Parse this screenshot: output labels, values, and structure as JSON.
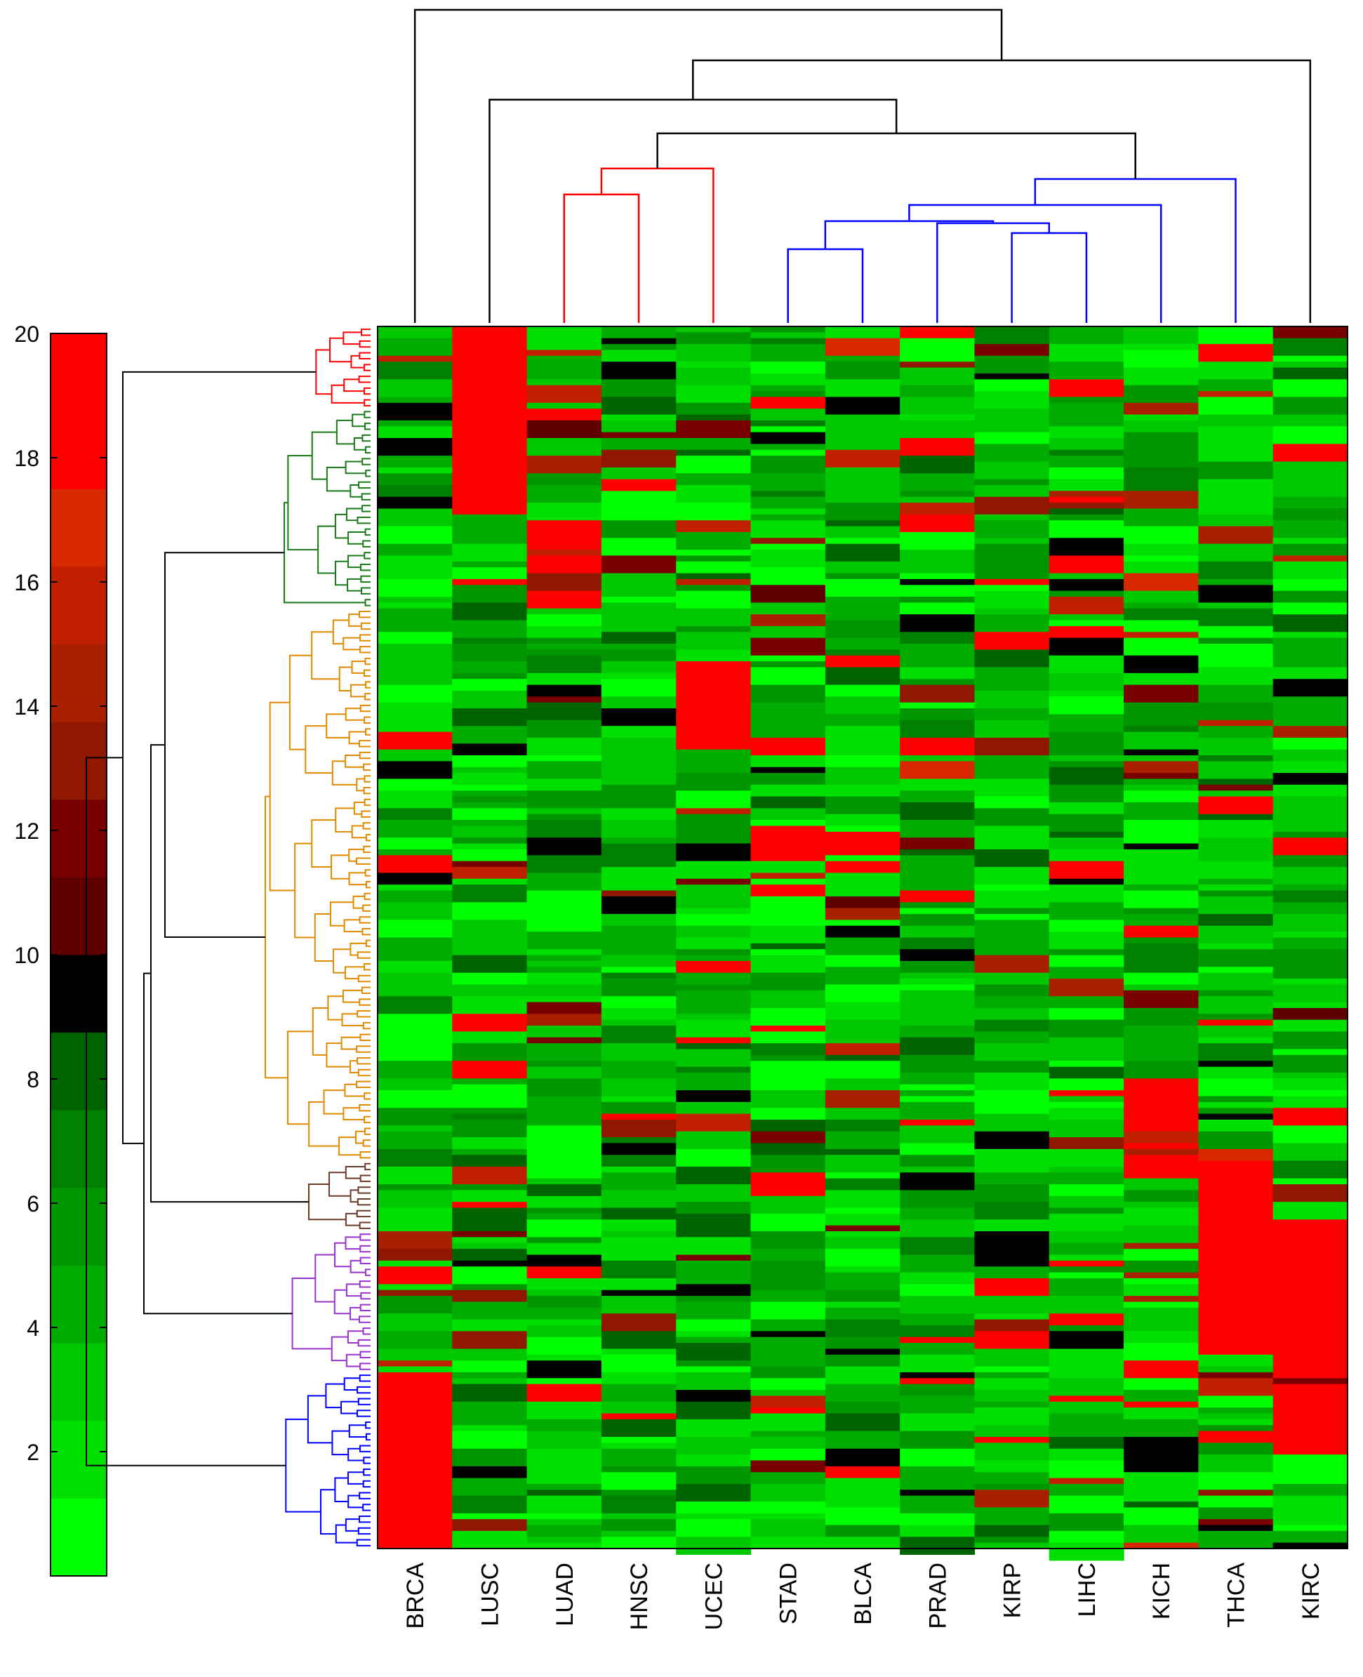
{
  "chart_data": {
    "type": "heatmap",
    "title": "",
    "xlabel": "",
    "ylabel": "",
    "columns": [
      "BRCA",
      "LUSC",
      "LUAD",
      "HNSC",
      "UCEC",
      "STAD",
      "BLCA",
      "PRAD",
      "KIRP",
      "LIHC",
      "KICH",
      "THCA",
      "KIRC"
    ],
    "colorbar": {
      "range": [
        0,
        20
      ],
      "ticks": [
        {
          "value": 2,
          "label": "2"
        },
        {
          "value": 4,
          "label": "4"
        },
        {
          "value": 6,
          "label": "6"
        },
        {
          "value": 8,
          "label": "8"
        },
        {
          "value": 10,
          "label": "10"
        },
        {
          "value": 12,
          "label": "12"
        },
        {
          "value": 14,
          "label": "14"
        },
        {
          "value": 16,
          "label": "16"
        },
        {
          "value": 18,
          "label": "18"
        },
        {
          "value": 20,
          "label": "20"
        }
      ],
      "colors": [
        "#00ff00",
        "#00e000",
        "#00c800",
        "#00ac00",
        "#009600",
        "#008000",
        "#006400",
        "#000000",
        "#600000",
        "#780000",
        "#901800",
        "#a82000",
        "#c02000",
        "#d82800",
        "#ff0000",
        "#ff0000"
      ],
      "scheme": "green-black-red"
    },
    "row_clusters": [
      {
        "name": "",
        "color": "#ff0000",
        "rows": 14
      },
      {
        "name": "",
        "color": "#1a7a1a",
        "rows": 34
      },
      {
        "name": "",
        "color": "#e08a00",
        "rows": 94
      },
      {
        "name": "",
        "color": "#6b3a2a",
        "rows": 12
      },
      {
        "name": "",
        "color": "#9933cc",
        "rows": 24
      },
      {
        "name": "",
        "color": "#0000ff",
        "rows": 30
      }
    ],
    "column_dendrogram_colors": {
      "cluster_a": "#ff0000",
      "cluster_b": "#0000ff",
      "root": "#000000"
    },
    "row_count": 208,
    "dominant_high_blocks": [
      {
        "column": "BRCA",
        "rows_from": 178,
        "rows_to": 208
      },
      {
        "column": "LUSC",
        "rows_from": 0,
        "rows_to": 30
      },
      {
        "column": "LUAD",
        "rows_from": 32,
        "rows_to": 48
      },
      {
        "column": "UCEC",
        "rows_from": 56,
        "rows_to": 72
      },
      {
        "column": "KIRC",
        "rows_from": 150,
        "rows_to": 190
      },
      {
        "column": "THCA",
        "rows_from": 140,
        "rows_to": 175
      },
      {
        "column": "KICH",
        "rows_from": 128,
        "rows_to": 145
      }
    ],
    "grid": false
  }
}
